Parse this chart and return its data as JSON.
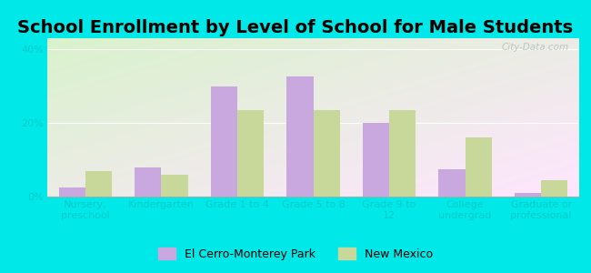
{
  "title": "School Enrollment by Level of School for Male Students",
  "categories": [
    "Nursery,\npreschool",
    "Kindergarten",
    "Grade 1 to 4",
    "Grade 5 to 8",
    "Grade 9 to\n12",
    "College\nundergrad",
    "Graduate or\nprofessional"
  ],
  "el_cerro": [
    2.5,
    8.0,
    30.0,
    32.5,
    20.0,
    7.5,
    1.0
  ],
  "new_mexico": [
    7.0,
    6.0,
    23.5,
    23.5,
    23.5,
    16.0,
    4.5
  ],
  "el_cerro_color": "#c9a8e0",
  "new_mexico_color": "#c8d89a",
  "background_color": "#00e8e8",
  "tick_color": "#00cccc",
  "ylabel_ticks": [
    "0%",
    "20%",
    "40%"
  ],
  "yticks": [
    0,
    20,
    40
  ],
  "ylim": [
    0,
    43
  ],
  "legend_el_cerro": "El Cerro-Monterey Park",
  "legend_new_mexico": "New Mexico",
  "title_fontsize": 14,
  "tick_fontsize": 8,
  "legend_fontsize": 9,
  "watermark": "City-Data.com"
}
